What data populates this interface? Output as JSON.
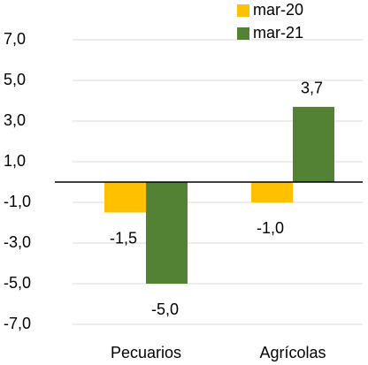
{
  "chart_data": {
    "type": "bar",
    "categories": [
      "Pecuarios",
      "Agrícolas"
    ],
    "series": [
      {
        "name": "mar-20",
        "color": "#ffc000",
        "values": [
          -1.5,
          -1.0
        ],
        "value_labels": [
          "-1,5",
          "-1,0"
        ]
      },
      {
        "name": "mar-21",
        "color": "#548235",
        "values": [
          -5.0,
          3.7
        ],
        "value_labels": [
          "-5,0",
          "3,7"
        ]
      }
    ],
    "ylim": [
      -7,
      7
    ],
    "yticks": [
      {
        "value": 7,
        "label": "7,0"
      },
      {
        "value": 5,
        "label": "5,0"
      },
      {
        "value": 3,
        "label": "3,0"
      },
      {
        "value": 1,
        "label": "1,0"
      },
      {
        "value": -1,
        "label": "-1,0"
      },
      {
        "value": -3,
        "label": "-3,0"
      },
      {
        "value": -5,
        "label": "-5,0"
      },
      {
        "value": -7,
        "label": "-7,0"
      }
    ],
    "grid": true,
    "legend": "top-right"
  }
}
